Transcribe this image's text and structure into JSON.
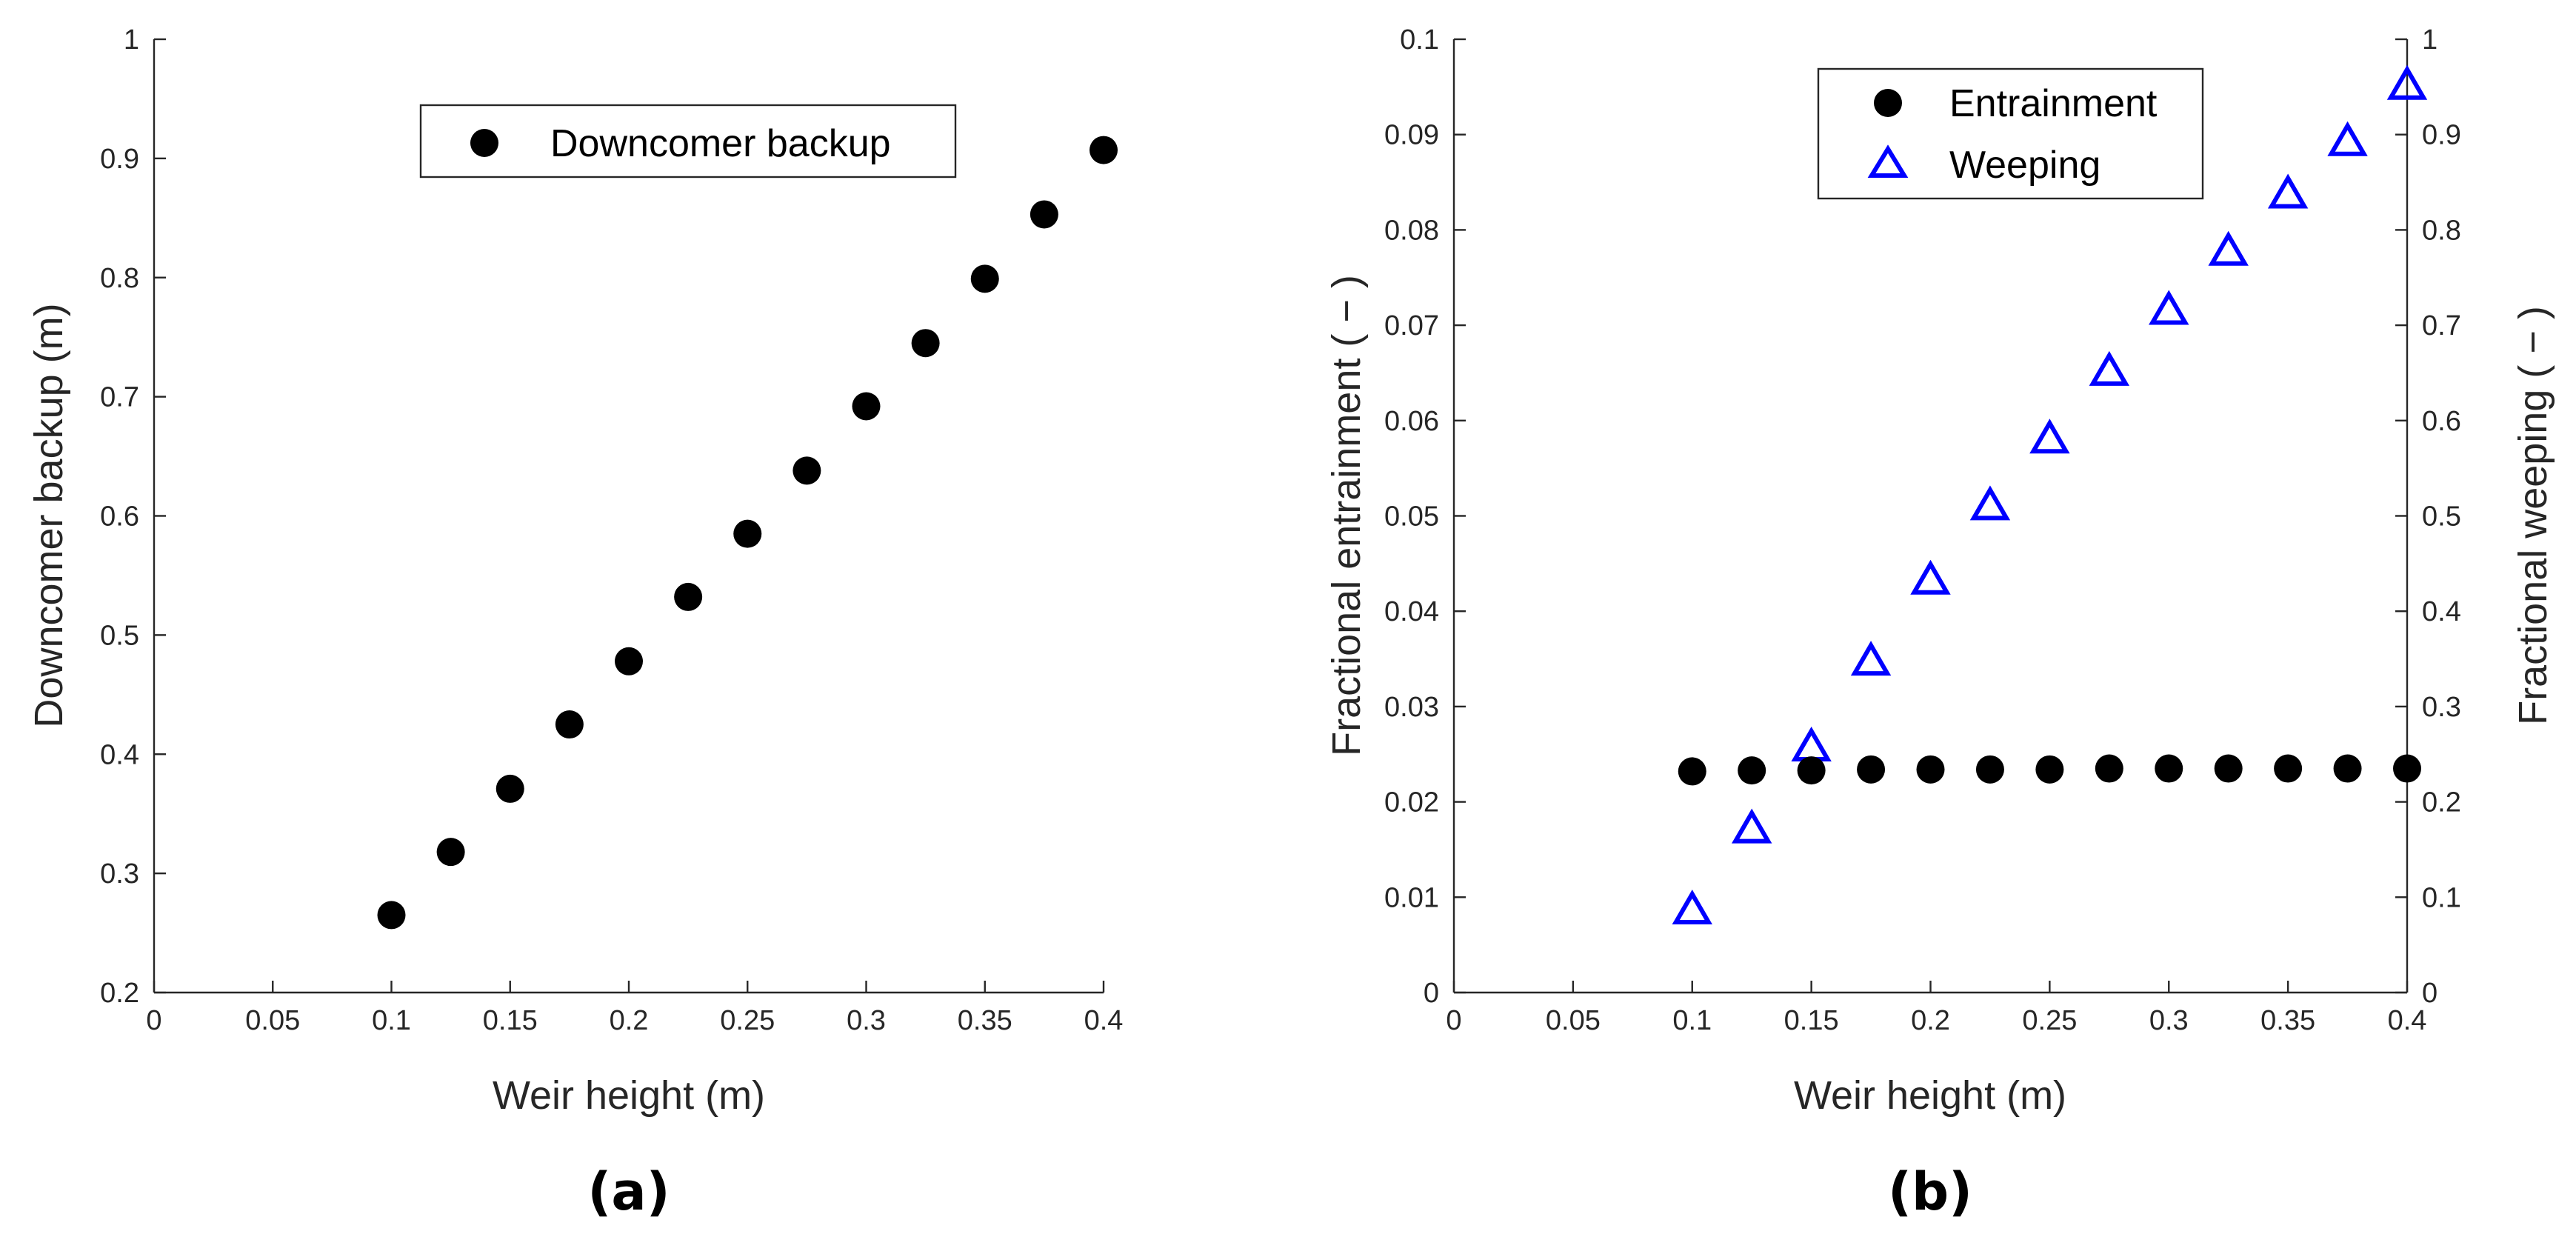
{
  "chart_data": [
    {
      "panel": "(a)",
      "type": "scatter",
      "xlabel": "Weir height (m)",
      "ylabel": "Downcomer backup (m)",
      "xlim": [
        0,
        0.4
      ],
      "ylim": [
        0.2,
        1
      ],
      "xticks": [
        "0",
        "0.05",
        "0.1",
        "0.15",
        "0.2",
        "0.25",
        "0.3",
        "0.35",
        "0.4"
      ],
      "yticks": [
        "0.2",
        "0.3",
        "0.4",
        "0.5",
        "0.6",
        "0.7",
        "0.8",
        "0.9",
        "1"
      ],
      "legend": {
        "position": "top-center",
        "entries": [
          "Downcomer backup"
        ]
      },
      "series": [
        {
          "name": "Downcomer backup",
          "marker": "filled-circle",
          "color": "#000000",
          "x": [
            0.1,
            0.125,
            0.15,
            0.175,
            0.2,
            0.225,
            0.25,
            0.275,
            0.3,
            0.325,
            0.35,
            0.375,
            0.4
          ],
          "y": [
            0.265,
            0.318,
            0.371,
            0.425,
            0.478,
            0.532,
            0.585,
            0.638,
            0.692,
            0.745,
            0.799,
            0.853,
            0.907
          ]
        }
      ]
    },
    {
      "panel": "(b)",
      "type": "scatter",
      "xlabel": "Weir height (m)",
      "ylabel": "Fractional entrainment ( − )",
      "ylabel_right": "Fractional weeping ( − )",
      "xlim": [
        0,
        0.4
      ],
      "ylim": [
        0,
        0.1
      ],
      "ylim_right": [
        0,
        1
      ],
      "xticks": [
        "0",
        "0.05",
        "0.1",
        "0.15",
        "0.2",
        "0.25",
        "0.3",
        "0.35",
        "0.4"
      ],
      "yticks": [
        "0",
        "0.01",
        "0.02",
        "0.03",
        "0.04",
        "0.05",
        "0.06",
        "0.07",
        "0.08",
        "0.09",
        "0.1"
      ],
      "yticks_right": [
        "0",
        "0.1",
        "0.2",
        "0.3",
        "0.4",
        "0.5",
        "0.6",
        "0.7",
        "0.8",
        "0.9",
        "1"
      ],
      "legend": {
        "position": "top-center",
        "entries": [
          "Entrainment",
          "Weeping"
        ]
      },
      "series": [
        {
          "name": "Entrainment",
          "axis": "left",
          "marker": "filled-circle",
          "color": "#000000",
          "x": [
            0.1,
            0.125,
            0.15,
            0.175,
            0.2,
            0.225,
            0.25,
            0.275,
            0.3,
            0.325,
            0.35,
            0.375,
            0.4
          ],
          "y": [
            0.0232,
            0.0233,
            0.0233,
            0.0234,
            0.0234,
            0.0234,
            0.0234,
            0.0235,
            0.0235,
            0.0235,
            0.0235,
            0.0235,
            0.0235
          ]
        },
        {
          "name": "Weeping",
          "axis": "right",
          "marker": "open-triangle",
          "color": "#0000ff",
          "x": [
            0.1,
            0.125,
            0.15,
            0.175,
            0.2,
            0.225,
            0.25,
            0.275,
            0.3,
            0.325,
            0.35,
            0.375,
            0.4
          ],
          "y": [
            0.087,
            0.172,
            0.258,
            0.348,
            0.433,
            0.511,
            0.581,
            0.652,
            0.716,
            0.778,
            0.838,
            0.893,
            0.952
          ]
        }
      ]
    }
  ]
}
